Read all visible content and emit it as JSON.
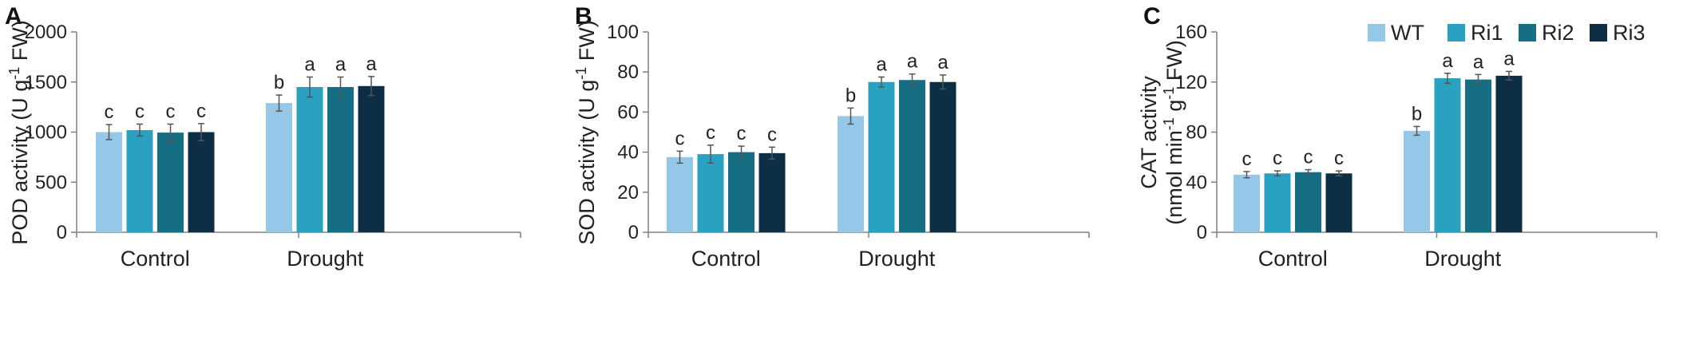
{
  "chart_data": [
    {
      "type": "bar",
      "panel": "A",
      "ylabel_main": "POD activity (U g",
      "ylabel_sup": "-1",
      "ylabel_end": " FW)",
      "categories": [
        "Control",
        "Drought"
      ],
      "ylim": [
        0,
        2000
      ],
      "yticks": [
        0,
        500,
        1000,
        1500,
        2000
      ],
      "series": [
        {
          "name": "WT",
          "values": [
            1000,
            1290
          ],
          "errors": [
            75,
            80
          ],
          "letters": [
            "c",
            "b"
          ]
        },
        {
          "name": "Ri1",
          "values": [
            1020,
            1450
          ],
          "errors": [
            60,
            100
          ],
          "letters": [
            "c",
            "a"
          ]
        },
        {
          "name": "Ri2",
          "values": [
            995,
            1450
          ],
          "errors": [
            85,
            100
          ],
          "letters": [
            "c",
            "a"
          ]
        },
        {
          "name": "Ri3",
          "values": [
            1000,
            1460
          ],
          "errors": [
            85,
            95
          ],
          "letters": [
            "c",
            "a"
          ]
        }
      ]
    },
    {
      "type": "bar",
      "panel": "B",
      "ylabel_main": "SOD activity (U g",
      "ylabel_sup": "-1",
      "ylabel_end": " FW)",
      "categories": [
        "Control",
        "Drought"
      ],
      "ylim": [
        0,
        100
      ],
      "yticks": [
        0,
        20,
        40,
        60,
        80,
        100
      ],
      "series": [
        {
          "name": "WT",
          "values": [
            37.5,
            58
          ],
          "errors": [
            3,
            4
          ],
          "letters": [
            "c",
            "b"
          ]
        },
        {
          "name": "Ri1",
          "values": [
            39,
            75
          ],
          "errors": [
            4.5,
            2.5
          ],
          "letters": [
            "c",
            "a"
          ]
        },
        {
          "name": "Ri2",
          "values": [
            40,
            76
          ],
          "errors": [
            3,
            3
          ],
          "letters": [
            "c",
            "a"
          ]
        },
        {
          "name": "Ri3",
          "values": [
            39.5,
            75
          ],
          "errors": [
            3,
            3.5
          ],
          "letters": [
            "c",
            "a"
          ]
        }
      ]
    },
    {
      "type": "bar",
      "panel": "C",
      "ylabel_line1": "CAT activity",
      "ylabel_line2_main": "(nmol min",
      "ylabel_line2_sup1": "-1",
      "ylabel_line2_mid": " g",
      "ylabel_line2_sup2": "-1",
      "ylabel_line2_end": " FW)",
      "categories": [
        "Control",
        "Drought"
      ],
      "ylim": [
        0,
        160
      ],
      "yticks": [
        0,
        40,
        80,
        120,
        160
      ],
      "series": [
        {
          "name": "WT",
          "values": [
            46,
            81
          ],
          "errors": [
            2.5,
            3.5
          ],
          "letters": [
            "c",
            "b"
          ]
        },
        {
          "name": "Ri1",
          "values": [
            47,
            123
          ],
          "errors": [
            2,
            4
          ],
          "letters": [
            "c",
            "a"
          ]
        },
        {
          "name": "Ri2",
          "values": [
            48,
            122
          ],
          "errors": [
            2,
            4
          ],
          "letters": [
            "c",
            "a"
          ]
        },
        {
          "name": "Ri3",
          "values": [
            47,
            125
          ],
          "errors": [
            2,
            3.5
          ],
          "letters": [
            "c",
            "a"
          ]
        }
      ]
    }
  ],
  "legend": {
    "items": [
      "WT",
      "Ri1",
      "Ri2",
      "Ri3"
    ],
    "placement": "top-right"
  },
  "colors": {
    "WT": "#95c8e8",
    "Ri1": "#2aa1c0",
    "Ri2": "#166e85",
    "Ri3": "#0d2e44",
    "axis": "#808080",
    "errorbar": "#555555"
  }
}
